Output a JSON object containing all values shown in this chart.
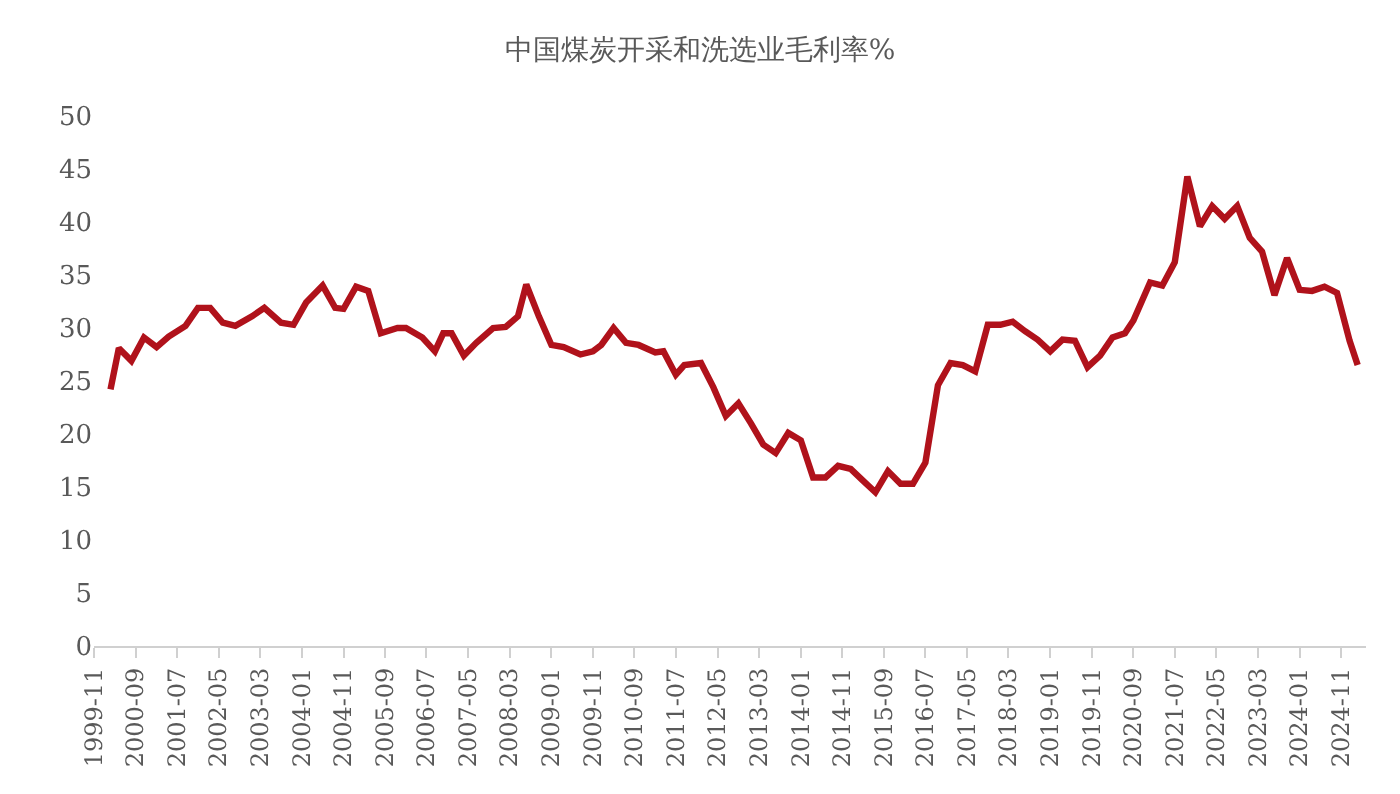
{
  "chart_data": {
    "type": "line",
    "title": "中国煤炭开采和洗选业毛利率%",
    "x": [
      "2000-03",
      "2000-05",
      "2000-08",
      "2000-11",
      "2001-02",
      "2001-05",
      "2001-09",
      "2001-12",
      "2002-03",
      "2002-06",
      "2002-09",
      "2003-01",
      "2003-04",
      "2003-08",
      "2003-11",
      "2004-02",
      "2004-06",
      "2004-09",
      "2004-11",
      "2005-02",
      "2005-05",
      "2005-08",
      "2005-12",
      "2006-02",
      "2006-06",
      "2006-09",
      "2006-11",
      "2007-01",
      "2007-04",
      "2007-07",
      "2007-11",
      "2008-02",
      "2008-05",
      "2008-07",
      "2008-10",
      "2009-01",
      "2009-04",
      "2009-08",
      "2009-11",
      "2010-01",
      "2010-04",
      "2010-07",
      "2010-10",
      "2011-02",
      "2011-04",
      "2011-07",
      "2011-09",
      "2012-01",
      "2012-04",
      "2012-07",
      "2012-10",
      "2013-01",
      "2013-04",
      "2013-07",
      "2013-10",
      "2014-01",
      "2014-04",
      "2014-07",
      "2014-10",
      "2015-01",
      "2015-04",
      "2015-07",
      "2015-10",
      "2016-01",
      "2016-04",
      "2016-07",
      "2016-10",
      "2017-01",
      "2017-04",
      "2017-07",
      "2017-10",
      "2018-01",
      "2018-04",
      "2018-07",
      "2018-10",
      "2019-01",
      "2019-04",
      "2019-07",
      "2019-10",
      "2020-01",
      "2020-04",
      "2020-07",
      "2020-09",
      "2021-01",
      "2021-04",
      "2021-07",
      "2021-10",
      "2022-01",
      "2022-04",
      "2022-07",
      "2022-10",
      "2023-01",
      "2023-04",
      "2023-07",
      "2023-10",
      "2024-01",
      "2024-04",
      "2024-07",
      "2024-10",
      "2025-01",
      "2025-03"
    ],
    "series": [
      {
        "color": "#b0121b",
        "values": [
          24.2,
          28.1,
          26.9,
          29.1,
          28.2,
          29.2,
          30.2,
          31.9,
          31.9,
          30.5,
          30.2,
          31.1,
          31.9,
          30.5,
          30.3,
          32.4,
          34.0,
          31.9,
          31.8,
          33.9,
          33.5,
          29.5,
          30.0,
          30.0,
          29.1,
          27.8,
          29.5,
          29.5,
          27.4,
          28.6,
          30.0,
          30.1,
          31.1,
          34.1,
          31.1,
          28.4,
          28.2,
          27.5,
          27.8,
          28.4,
          30.0,
          28.6,
          28.4,
          27.7,
          27.8,
          25.6,
          26.5,
          26.7,
          24.4,
          21.7,
          22.9,
          21.0,
          19.0,
          18.2,
          20.1,
          19.4,
          15.9,
          15.9,
          17.0,
          16.7,
          15.6,
          14.5,
          16.5,
          15.3,
          15.3,
          17.3,
          24.6,
          26.7,
          26.5,
          25.9,
          30.3,
          30.3,
          30.6,
          29.7,
          28.9,
          27.8,
          28.9,
          28.8,
          26.3,
          27.4,
          29.1,
          29.5,
          30.7,
          34.3,
          34.0,
          36.2,
          44.3,
          39.6,
          41.5,
          40.3,
          41.5,
          38.5,
          37.2,
          33.1,
          36.6,
          33.6,
          33.5,
          33.9,
          33.3,
          28.8,
          26.5
        ]
      }
    ],
    "xlim": [
      "1999-11",
      "2025-05"
    ],
    "xticks": [
      "1999-11",
      "2000-09",
      "2001-07",
      "2002-05",
      "2003-03",
      "2004-01",
      "2004-11",
      "2005-09",
      "2006-07",
      "2007-05",
      "2008-03",
      "2009-01",
      "2009-11",
      "2010-09",
      "2011-07",
      "2012-05",
      "2013-03",
      "2014-01",
      "2014-11",
      "2015-09",
      "2016-07",
      "2017-05",
      "2018-03",
      "2019-01",
      "2019-11",
      "2020-09",
      "2021-07",
      "2022-05",
      "2023-03",
      "2024-01",
      "2024-11"
    ],
    "ylim": [
      0,
      50
    ],
    "yticks": [
      0,
      5,
      10,
      15,
      20,
      25,
      30,
      35,
      40,
      45,
      50
    ],
    "grid": false,
    "marker": "none",
    "line_style": "solid"
  }
}
